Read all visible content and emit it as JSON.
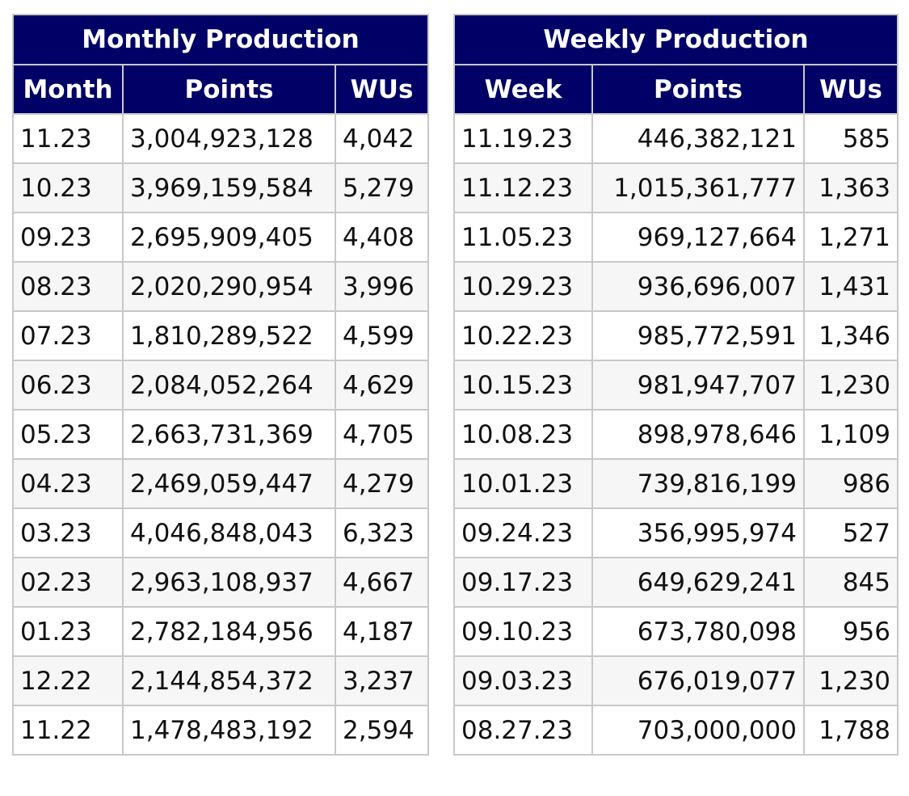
{
  "colors": {
    "header_bg": "#000066",
    "header_text": "#ffffff",
    "border": "#c8c8c8",
    "alt_row": "#f6f6f6"
  },
  "monthly": {
    "title": "Monthly Production",
    "columns": [
      "Month",
      "Points",
      "WUs"
    ],
    "rows": [
      [
        "11.23",
        "3,004,923,128",
        "4,042"
      ],
      [
        "10.23",
        "3,969,159,584",
        "5,279"
      ],
      [
        "09.23",
        "2,695,909,405",
        "4,408"
      ],
      [
        "08.23",
        "2,020,290,954",
        "3,996"
      ],
      [
        "07.23",
        "1,810,289,522",
        "4,599"
      ],
      [
        "06.23",
        "2,084,052,264",
        "4,629"
      ],
      [
        "05.23",
        "2,663,731,369",
        "4,705"
      ],
      [
        "04.23",
        "2,469,059,447",
        "4,279"
      ],
      [
        "03.23",
        "4,046,848,043",
        "6,323"
      ],
      [
        "02.23",
        "2,963,108,937",
        "4,667"
      ],
      [
        "01.23",
        "2,782,184,956",
        "4,187"
      ],
      [
        "12.22",
        "2,144,854,372",
        "3,237"
      ],
      [
        "11.22",
        "1,478,483,192",
        "2,594"
      ]
    ]
  },
  "weekly": {
    "title": "Weekly Production",
    "columns": [
      "Week",
      "Points",
      "WUs"
    ],
    "rows": [
      [
        "11.19.23",
        "446,382,121",
        "585"
      ],
      [
        "11.12.23",
        "1,015,361,777",
        "1,363"
      ],
      [
        "11.05.23",
        "969,127,664",
        "1,271"
      ],
      [
        "10.29.23",
        "936,696,007",
        "1,431"
      ],
      [
        "10.22.23",
        "985,772,591",
        "1,346"
      ],
      [
        "10.15.23",
        "981,947,707",
        "1,230"
      ],
      [
        "10.08.23",
        "898,978,646",
        "1,109"
      ],
      [
        "10.01.23",
        "739,816,199",
        "986"
      ],
      [
        "09.24.23",
        "356,995,974",
        "527"
      ],
      [
        "09.17.23",
        "649,629,241",
        "845"
      ],
      [
        "09.10.23",
        "673,780,098",
        "956"
      ],
      [
        "09.03.23",
        "676,019,077",
        "1,230"
      ],
      [
        "08.27.23",
        "703,000,000",
        "1,788"
      ]
    ]
  }
}
